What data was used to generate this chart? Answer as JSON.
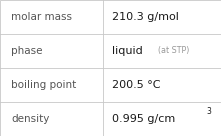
{
  "rows": [
    {
      "label": "molar mass",
      "value": "210.3 g/mol",
      "type": "simple"
    },
    {
      "label": "phase",
      "value": "liquid",
      "suffix": "(at STP)",
      "type": "phase"
    },
    {
      "label": "boiling point",
      "value": "200.5 °C",
      "type": "simple"
    },
    {
      "label": "density",
      "value": "0.995 g/cm",
      "superscript": "3",
      "type": "density"
    }
  ],
  "col_split": 0.465,
  "background_color": "#ffffff",
  "border_color": "#c8c8c8",
  "label_color": "#555555",
  "value_color": "#1a1a1a",
  "suffix_color": "#999999",
  "label_fontsize": 7.5,
  "value_fontsize": 8.0,
  "suffix_fontsize": 5.8,
  "super_fontsize": 5.5
}
